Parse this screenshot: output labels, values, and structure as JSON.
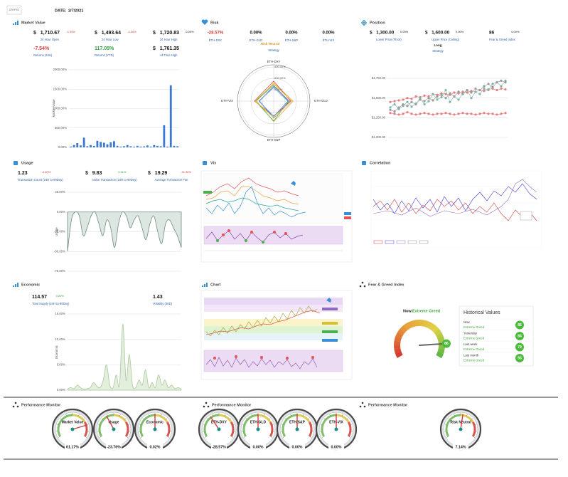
{
  "header": {
    "logo": "CRYPTO",
    "date_label": "DATE:",
    "date": "2/7/2021"
  },
  "market_value": {
    "title": "Market Value",
    "metrics": [
      {
        "currency": "$",
        "value": "1,710.67",
        "change": "-4.35%",
        "change_color": "#d43a3a",
        "label": "24 Hour Open"
      },
      {
        "currency": "$",
        "value": "1,493.64",
        "change": "-4.36%",
        "change_color": "#d43a3a",
        "label": "24 Hour Low"
      },
      {
        "currency": "$",
        "value": "1,720.83",
        "change": "0.00%",
        "label": "24 Hour High"
      },
      {
        "value": "-7.54%",
        "color": "#d43a3a",
        "label": "Returns (24H)"
      },
      {
        "value": "117.05%",
        "color": "#2e9e3e",
        "label": "Returns (YTD)"
      },
      {
        "currency": "$",
        "value": "1,761.35",
        "label": "All Time High"
      }
    ],
    "chart": {
      "type": "bar",
      "y_label": "Market Value",
      "color": "#3a78d4",
      "values": [
        20,
        60,
        110,
        50,
        250,
        30,
        60,
        40,
        170,
        140,
        120,
        80,
        130,
        160,
        40,
        20,
        30,
        60,
        30,
        15,
        40,
        20,
        25,
        50,
        20,
        60,
        40,
        30,
        570,
        20,
        1600,
        40,
        30
      ],
      "ylim": [
        0,
        2000
      ],
      "yticks": [
        {
          "value": 0,
          "label": "0.00%"
        },
        {
          "value": 500,
          "label": "500.00%"
        },
        {
          "value": 1000,
          "label": "1000.00%"
        },
        {
          "value": 1500,
          "label": "1500.00%"
        },
        {
          "value": 2000,
          "label": "2000.00%"
        }
      ]
    }
  },
  "risk": {
    "title": "Risk",
    "metrics": [
      {
        "value": "-28.57%",
        "color": "#d43a3a",
        "label": "ETH-DXY"
      },
      {
        "value": "0.00%",
        "label": "ETH-GLD"
      },
      {
        "value": "0.00%",
        "label": "ETH-S&P"
      },
      {
        "value": "0.00%",
        "label": "ETH-VIX"
      }
    ],
    "strategy_value": "Risk Neutral",
    "strategy_label": "Strategy",
    "radar": {
      "type": "radar",
      "axes": [
        "ETH-DXY",
        "ETH-GLD",
        "ETH-S&P",
        "ETH-VIX"
      ],
      "rlim": [
        -200,
        400
      ],
      "rticks": [
        {
          "value": 0,
          "label": "0.00%"
        },
        {
          "value": 200,
          "label": "200.00%"
        },
        {
          "value": 400,
          "label": "400.00%"
        }
      ],
      "series": [
        {
          "color": "#e8a33d",
          "values": [
            120,
            140,
            160,
            100
          ]
        },
        {
          "color": "#4caf50",
          "values": [
            80,
            60,
            150,
            120
          ]
        },
        {
          "color": "#d9534f",
          "values": [
            150,
            100,
            60,
            140
          ]
        },
        {
          "color": "#8e6bbf",
          "values": [
            60,
            80,
            100,
            50
          ]
        },
        {
          "color": "#d4c13a",
          "values": [
            100,
            120,
            90,
            130
          ]
        },
        {
          "color": "#3a8fd4",
          "values": [
            40,
            50,
            70,
            60
          ]
        }
      ]
    }
  },
  "position": {
    "title": "Position",
    "metrics": [
      {
        "currency": "$",
        "value": "1,300.00",
        "change": "0.00%",
        "label": "Lower Price (Floor)"
      },
      {
        "currency": "$",
        "value": "1,600.00",
        "change": "0.00%",
        "label": "Upper Price (Ceiling)"
      },
      {
        "value": "86",
        "change": "0.00%",
        "label": "Fear & Greed Index"
      }
    ],
    "strategy_value": "Long",
    "strategy_label": "Strategy",
    "chart": {
      "type": "line",
      "ylim": [
        1000,
        1850
      ],
      "yticks": [
        {
          "value": 1000,
          "label": "$1,000.00"
        },
        {
          "value": 1250,
          "label": "$1,250.00"
        },
        {
          "value": 1500,
          "label": "$1,500.00"
        },
        {
          "value": 1750,
          "label": "$1,750.00"
        }
      ],
      "series": [
        {
          "color": "#e57f7f",
          "values": [
            1310,
            1300,
            1290,
            1300,
            1320,
            1300,
            1290,
            1300,
            1310,
            1300,
            1290,
            1300,
            1300,
            1310,
            1300,
            1290,
            1300,
            1310,
            1300,
            1300,
            1290,
            1300,
            1310,
            1300,
            1300,
            1290,
            1300,
            1310
          ]
        },
        {
          "color": "#e57f7f",
          "values": [
            1450,
            1460,
            1470,
            1480,
            1500,
            1490,
            1520,
            1510,
            1530,
            1520,
            1550,
            1540,
            1560,
            1550,
            1540,
            1570,
            1560,
            1580,
            1570,
            1590,
            1580,
            1600,
            1590,
            1610,
            1620,
            1600,
            1620,
            1610
          ]
        },
        {
          "color": "#7fb5a8",
          "values": [
            1380,
            1420,
            1360,
            1400,
            1450,
            1390,
            1430,
            1500,
            1420,
            1460,
            1550,
            1480,
            1510,
            1600,
            1450,
            1520,
            1480,
            1560,
            1600,
            1500,
            1580,
            1550,
            1620,
            1600,
            1680,
            1700,
            1650,
            1720
          ]
        },
        {
          "color": "#9a9a9a",
          "values": [
            1350,
            1330,
            1380,
            1420,
            1400,
            1450,
            1420,
            1480,
            1460,
            1500,
            1470,
            1520,
            1540,
            1500,
            1560,
            1520,
            1580,
            1550,
            1600,
            1570,
            1620,
            1600,
            1650,
            1680,
            1640,
            1700,
            1720,
            1700
          ]
        }
      ]
    }
  },
  "usage": {
    "title": "Usage",
    "metrics": [
      {
        "value": "1.23",
        "change": "-4.60%",
        "change_color": "#d43a3a",
        "label": "Transaction Count (24H to 90Day)"
      },
      {
        "currency": "$",
        "value": "9.83",
        "change": "0.51%",
        "change_color": "#2e9e3e",
        "label": "Value Transaction (24H to 90Day)"
      },
      {
        "currency": "$",
        "value": "19.29",
        "change": "-31.35%",
        "change_color": "#d43a3a",
        "label": "Average Transaction Fee"
      }
    ],
    "chart": {
      "type": "area",
      "y_label": "Usage",
      "values": [
        -50,
        -10,
        0,
        -5,
        -30,
        -20,
        -5,
        0,
        -15,
        -30,
        -10,
        -20,
        -45,
        -15,
        0,
        -5,
        -20,
        -10,
        -5,
        -20,
        -35,
        -15,
        -5,
        -25,
        -40,
        -15,
        -10,
        -20,
        -30,
        -45
      ],
      "ylim": [
        -75,
        25
      ],
      "yticks": [
        {
          "value": 25,
          "label": "25.00%"
        },
        {
          "value": 0,
          "label": "0.00%"
        },
        {
          "value": -25,
          "label": "-25.00%"
        },
        {
          "value": -50,
          "label": "-50.00%"
        },
        {
          "value": -75,
          "label": "-75.00%"
        }
      ]
    }
  },
  "vix": {
    "title": "Vix"
  },
  "correlation": {
    "title": "Correlation"
  },
  "economic": {
    "title": "Economic",
    "metrics": [
      {
        "value": "114.57",
        "change": "0.00%",
        "change_color": "#2e9e3e",
        "label": "Total Supply (24H to 90Day)"
      },
      {
        "value": "1.43",
        "label": "Volatility (30D)"
      }
    ],
    "chart": {
      "type": "area",
      "y_label": "Economic",
      "values": [
        0.2,
        0.5,
        0.3,
        1,
        0.5,
        0.2,
        0.3,
        0.5,
        1.5,
        0.8,
        0.5,
        2,
        5,
        1,
        0.5,
        3,
        1,
        13,
        2,
        7,
        1,
        0.5,
        2,
        1,
        4,
        0.5,
        1.5,
        0.5,
        3,
        1,
        2,
        0.5,
        1,
        0.3,
        0.5,
        0.2
      ],
      "ylim": [
        0,
        15
      ],
      "yticks": [
        {
          "value": 0,
          "label": "0.00%"
        },
        {
          "value": 5,
          "label": "5.00%"
        },
        {
          "value": 10,
          "label": "10.00%"
        },
        {
          "value": 15,
          "label": "15.00%"
        }
      ]
    }
  },
  "chart_panel": {
    "title": "Chart"
  },
  "fear_greed": {
    "title": "Fear & Greed Index",
    "now_label": "Now:",
    "now_value": "Extreme Greed",
    "gauge": {
      "value": 86,
      "range": [
        0,
        100
      ]
    },
    "history_title": "Historical Values",
    "history": [
      {
        "period": "Now",
        "status": "Extreme Greed",
        "value": "86"
      },
      {
        "period": "Yesterday",
        "status": "Extreme Greed",
        "value": "84"
      },
      {
        "period": "Last week",
        "status": "Extreme Greed",
        "value": "79"
      },
      {
        "period": "Last month",
        "status": "Extreme Greed",
        "value": "93"
      }
    ]
  },
  "performance": {
    "gauge_range": [
      -100,
      100
    ],
    "panels": [
      {
        "title": "Performance Monitor",
        "gauges": [
          {
            "label": "Market Value",
            "value": 61.17,
            "value_label": "61.17%"
          },
          {
            "label": "Usage",
            "value": -23.76,
            "value_label": "-23.76%"
          },
          {
            "label": "Economic",
            "value": 0.02,
            "value_label": "0.02%"
          }
        ]
      },
      {
        "title": "Performance Monitor",
        "gauges": [
          {
            "label": "ETH-DXY",
            "value": -28.57,
            "value_label": "-28.57%"
          },
          {
            "label": "ETH-GLD",
            "value": 0,
            "value_label": "0.00%"
          },
          {
            "label": "ETH-S&P",
            "value": 0,
            "value_label": "0.00%"
          },
          {
            "label": "ETH-VIX",
            "value": 0,
            "value_label": "0.00%"
          }
        ]
      },
      {
        "title": "Performance Monitor",
        "gauges": [
          {
            "label": "Risk Neutral",
            "value": 7.14,
            "value_label": "7.14%"
          }
        ]
      }
    ]
  }
}
